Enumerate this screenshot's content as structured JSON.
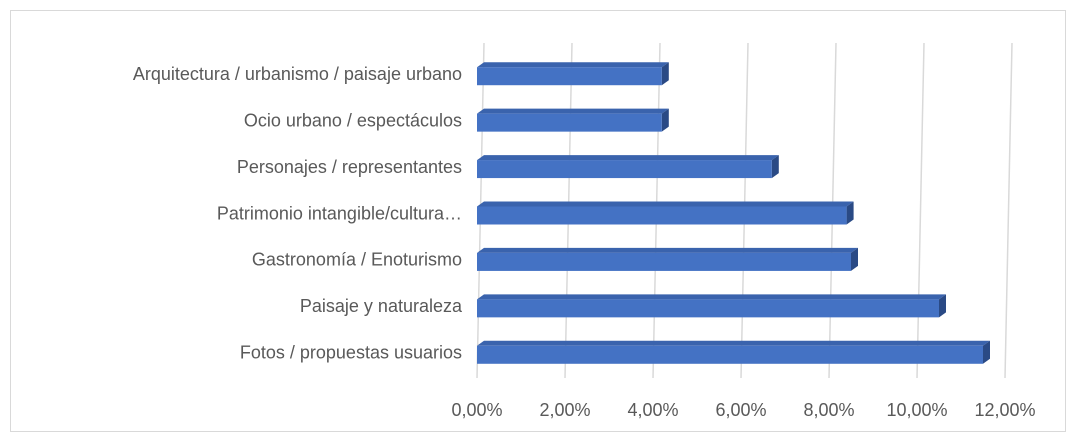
{
  "chart_data": {
    "type": "bar",
    "orientation": "horizontal",
    "categories": [
      "Arquitectura / urbanismo / paisaje urbano",
      "Ocio urbano / espectáculos",
      "Personajes / representantes",
      "Patrimonio intangible/cultura…",
      "Gastronomía / Enoturismo",
      "Paisaje y naturaleza",
      "Fotos / propuestas usuarios"
    ],
    "values": [
      4.2,
      4.2,
      6.7,
      8.4,
      8.5,
      10.5,
      11.5
    ],
    "color": "#4472c4",
    "xlim": [
      0,
      12
    ],
    "xticks": [
      {
        "value": 0,
        "label": "0,00%"
      },
      {
        "value": 2,
        "label": "2,00%"
      },
      {
        "value": 4,
        "label": "4,00%"
      },
      {
        "value": 6,
        "label": "6,00%"
      },
      {
        "value": 8,
        "label": "8,00%"
      },
      {
        "value": 10,
        "label": "10,00%"
      },
      {
        "value": 12,
        "label": "12,00%"
      }
    ],
    "grid": true
  }
}
